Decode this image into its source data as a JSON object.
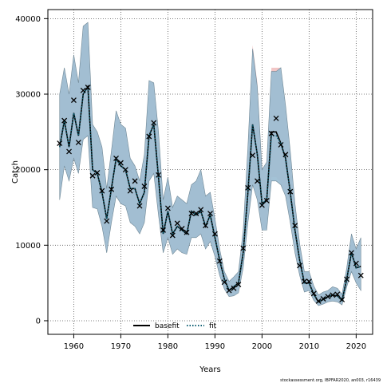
{
  "chart_data": {
    "type": "line",
    "title": "",
    "xlabel": "Years",
    "ylabel": "Catch",
    "xlim": [
      1954.5,
      2023.5
    ],
    "ylim": [
      -1800,
      41200
    ],
    "xticks": [
      1960,
      1970,
      1980,
      1990,
      2000,
      2010,
      2020
    ],
    "yticks": [
      0,
      10000,
      20000,
      30000,
      40000
    ],
    "xtick_labels": [
      "1960",
      "1970",
      "1980",
      "1990",
      "2000",
      "2010",
      "2020"
    ],
    "ytick_labels": [
      "0",
      "10000",
      "20000",
      "30000",
      "40000"
    ],
    "grid": true,
    "legend_position": "bottom-center",
    "legend": [
      "basefit",
      "fit"
    ],
    "footer": "stockassessment.org, IBPFAR2020, an003, r16439",
    "colors": {
      "band": "#9bbdd2",
      "band_edge": "#6f8896",
      "base_band": "#f2c6c6",
      "fit_line": "#0f5f73",
      "basefit_line": "#000000",
      "observed": "#000000"
    },
    "series": [
      {
        "name": "basefit",
        "x": [
          1957,
          1958,
          1959,
          1960,
          1961,
          1962,
          1963,
          1964,
          1965,
          1966,
          1967,
          1968,
          1969,
          1970,
          1971,
          1972,
          1973,
          1974,
          1975,
          1976,
          1977,
          1978,
          1979,
          1980,
          1981,
          1982,
          1983,
          1984,
          1985,
          1986,
          1987,
          1988,
          1989,
          1990,
          1991,
          1992,
          1993,
          1994,
          1995,
          1996,
          1997,
          1998,
          1999,
          2000,
          2001,
          2002,
          2003,
          2004,
          2005,
          2006,
          2007,
          2008,
          2009,
          2010,
          2011,
          2012,
          2013,
          2014,
          2015,
          2016,
          2017,
          2018,
          2019,
          2020,
          2021
        ],
        "y": [
          23000,
          26500,
          23000,
          27500,
          24500,
          30000,
          31000,
          20000,
          19500,
          17000,
          13500,
          17500,
          21500,
          20500,
          20000,
          17500,
          17500,
          15500,
          17000,
          24500,
          26000,
          19000,
          11500,
          14500,
          11500,
          12500,
          12000,
          11500,
          14500,
          14000,
          14500,
          12500,
          14000,
          11000,
          8000,
          5500,
          4000,
          4500,
          5000,
          9000,
          17000,
          26000,
          22000,
          15500,
          16000,
          25000,
          25000,
          23500,
          21500,
          17000,
          12000,
          8000,
          5000,
          5000,
          3500,
          2500,
          2800,
          3200,
          3400,
          3300,
          2700,
          5500,
          9000,
          7000,
          7200
        ]
      },
      {
        "name": "fit",
        "x": [
          1957,
          1958,
          1959,
          1960,
          1961,
          1962,
          1963,
          1964,
          1965,
          1966,
          1967,
          1968,
          1969,
          1970,
          1971,
          1972,
          1973,
          1974,
          1975,
          1976,
          1977,
          1978,
          1979,
          1980,
          1981,
          1982,
          1983,
          1984,
          1985,
          1986,
          1987,
          1988,
          1989,
          1990,
          1991,
          1992,
          1993,
          1994,
          1995,
          1996,
          1997,
          1998,
          1999,
          2000,
          2001,
          2002,
          2003,
          2004,
          2005,
          2006,
          2007,
          2008,
          2009,
          2010,
          2011,
          2012,
          2013,
          2014,
          2015,
          2016,
          2017,
          2018,
          2019,
          2020,
          2021
        ],
        "y": [
          23000,
          26500,
          23000,
          27500,
          24500,
          30000,
          31000,
          20000,
          19500,
          17000,
          13500,
          17500,
          21500,
          20500,
          20000,
          17500,
          17500,
          15500,
          17000,
          24500,
          26000,
          19000,
          11500,
          14500,
          11500,
          12500,
          12000,
          11500,
          14500,
          14000,
          14500,
          12500,
          14000,
          11000,
          8000,
          5500,
          4000,
          4500,
          5000,
          9000,
          17000,
          26000,
          22000,
          15500,
          16000,
          24500,
          24500,
          23500,
          21500,
          17000,
          12000,
          8000,
          5000,
          5000,
          3500,
          2500,
          2800,
          3200,
          3400,
          3300,
          2700,
          5500,
          9000,
          7000,
          7200
        ],
        "lower": [
          16000,
          20500,
          18500,
          21500,
          19500,
          24000,
          24500,
          15000,
          14800,
          12500,
          9000,
          13000,
          16500,
          15500,
          15200,
          13000,
          12500,
          11500,
          13000,
          18500,
          19500,
          14000,
          9000,
          11000,
          8800,
          9500,
          9000,
          8800,
          11000,
          11000,
          11500,
          9500,
          10500,
          8500,
          6000,
          4200,
          3200,
          3300,
          3700,
          7000,
          13000,
          18000,
          16000,
          12000,
          12000,
          18500,
          18500,
          18000,
          16500,
          13000,
          9000,
          6000,
          3800,
          4000,
          2700,
          2000,
          2200,
          2500,
          2600,
          2500,
          2100,
          4500,
          6500,
          5000,
          4000
        ],
        "upper": [
          30000,
          33500,
          30000,
          35200,
          31500,
          39000,
          39500,
          26000,
          25000,
          23000,
          17500,
          22500,
          27800,
          26000,
          25500,
          21500,
          20500,
          18500,
          22000,
          31800,
          31500,
          25000,
          16000,
          19000,
          15000,
          16500,
          16000,
          15500,
          18000,
          18500,
          20000,
          16500,
          17000,
          13500,
          9500,
          6500,
          5200,
          5800,
          6500,
          12000,
          23000,
          36000,
          31000,
          20000,
          21000,
          33000,
          33000,
          33500,
          28500,
          22500,
          15500,
          10200,
          6500,
          6500,
          4600,
          3400,
          3800,
          4000,
          4500,
          4300,
          3500,
          7000,
          11500,
          9500,
          11000
        ],
        "base_lower": [
          16000,
          20500,
          18500,
          21500,
          19500,
          24000,
          24500,
          15000,
          14800,
          12500,
          9000,
          13000,
          16500,
          15500,
          15200,
          13000,
          12500,
          11500,
          13000,
          18500,
          19500,
          14000,
          9000,
          11000,
          8800,
          9500,
          9000,
          8800,
          11000,
          11000,
          11500,
          9500,
          10500,
          8500,
          6000,
          4200,
          3200,
          3300,
          3700,
          7000,
          13000,
          18000,
          16000,
          12000,
          12200,
          19000,
          19000,
          18300,
          16500,
          13000,
          9000,
          6000,
          3800,
          4000,
          2700,
          2000,
          2200,
          2500,
          2600,
          2500,
          2100,
          4500,
          6500,
          5000,
          4000
        ],
        "base_upper": [
          30000,
          33500,
          30000,
          35200,
          31500,
          39000,
          39500,
          26000,
          25000,
          23000,
          17500,
          22500,
          27800,
          26000,
          25500,
          21500,
          20500,
          18500,
          22000,
          31800,
          31500,
          25000,
          16000,
          19000,
          15000,
          16500,
          16000,
          15500,
          18000,
          18500,
          20000,
          16500,
          17000,
          13500,
          9500,
          6500,
          5200,
          5800,
          6500,
          12000,
          23000,
          36500,
          31500,
          20000,
          21000,
          33500,
          33500,
          33500,
          28500,
          22500,
          15500,
          10200,
          6500,
          6500,
          4600,
          3400,
          3800,
          4000,
          4500,
          4300,
          3500,
          7000,
          11500,
          9500,
          11000
        ]
      },
      {
        "name": "observed",
        "x": [
          1957,
          1958,
          1959,
          1960,
          1961,
          1962,
          1963,
          1964,
          1965,
          1966,
          1967,
          1968,
          1969,
          1970,
          1971,
          1972,
          1973,
          1974,
          1975,
          1976,
          1977,
          1978,
          1979,
          1980,
          1981,
          1982,
          1983,
          1984,
          1985,
          1986,
          1987,
          1988,
          1989,
          1990,
          1991,
          1992,
          1993,
          1994,
          1995,
          1996,
          1997,
          1998,
          1999,
          2000,
          2001,
          2002,
          2003,
          2004,
          2005,
          2006,
          2007,
          2008,
          2009,
          2010,
          2011,
          2012,
          2013,
          2014,
          2015,
          2016,
          2017,
          2018,
          2019,
          2020,
          2021
        ],
        "y": [
          23500,
          26500,
          22400,
          29200,
          23600,
          30500,
          30900,
          19200,
          19600,
          17200,
          13200,
          17400,
          21500,
          20900,
          20000,
          17200,
          18500,
          15200,
          17800,
          24400,
          26200,
          19300,
          12000,
          14900,
          11300,
          12900,
          12200,
          11700,
          14200,
          14200,
          14700,
          12600,
          14200,
          11500,
          7900,
          5100,
          4000,
          4300,
          4800,
          9600,
          17600,
          21900,
          18500,
          15300,
          15900,
          24800,
          26800,
          23300,
          22000,
          17100,
          12600,
          7300,
          5200,
          5200,
          3600,
          2600,
          2900,
          3200,
          3400,
          3500,
          2800,
          5500,
          9000,
          7600,
          6000
        ]
      }
    ]
  }
}
